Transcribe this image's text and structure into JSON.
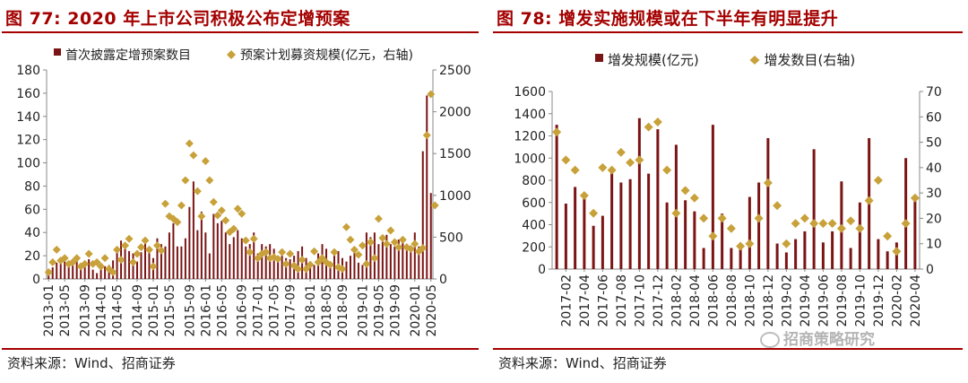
{
  "left": {
    "title": "图 77:  2020 年上市公司积极公布定增预案",
    "source": "资料来源：Wind、招商证券"
  },
  "right": {
    "title": "图 78:  增发实施规模或在下半年有明显提升",
    "source": "资料来源：Wind、招商证券"
  },
  "watermark": "招商策略研究",
  "colors": {
    "bar": "#7b1414",
    "diamond": "#c8a13a",
    "accent": "#a40000",
    "axis": "#888888",
    "text": "#222222"
  },
  "chart_data": [
    {
      "type": "bar",
      "title": "2020 年上市公司积极公布定增预案",
      "legend": [
        "首次披露定增预案数目",
        "预案计划募资规模(亿元，右轴)"
      ],
      "legend_position": "top",
      "ylim": [
        0,
        180
      ],
      "y_ticks": [
        0,
        20,
        40,
        60,
        80,
        100,
        120,
        140,
        160,
        180
      ],
      "y2lim": [
        0,
        2500
      ],
      "y2_ticks": [
        0,
        500,
        1000,
        1500,
        2000,
        2500
      ],
      "x_tick_labels": [
        "2013-01",
        "2013-05",
        "2013-09",
        "2014-01",
        "2014-05",
        "2014-09",
        "2015-01",
        "2015-05",
        "2015-09",
        "2016-01",
        "2016-05",
        "2016-09",
        "2017-01",
        "2017-05",
        "2017-09",
        "2018-01",
        "2018-05",
        "2018-09",
        "2019-01",
        "2019-05",
        "2019-09",
        "2020-01",
        "2020-05"
      ],
      "series": [
        {
          "name": "首次披露定增预案数目",
          "kind": "bar",
          "axis": "left",
          "values": [
            5,
            10,
            14,
            16,
            15,
            12,
            14,
            18,
            12,
            14,
            17,
            8,
            5,
            9,
            11,
            12,
            16,
            24,
            33,
            28,
            24,
            22,
            15,
            23,
            31,
            24,
            18,
            35,
            30,
            28,
            40,
            48,
            28,
            28,
            35,
            62,
            84,
            42,
            58,
            40,
            22,
            56,
            48,
            50,
            40,
            30,
            36,
            42,
            35,
            28,
            30,
            40,
            22,
            30,
            28,
            30,
            26,
            18,
            20,
            18,
            17,
            20,
            24,
            28,
            18,
            15,
            12,
            22,
            30,
            26,
            15,
            20,
            24,
            18,
            15,
            20,
            26,
            14,
            12,
            40,
            36,
            40,
            30,
            32,
            38,
            30,
            28,
            34,
            35,
            28,
            26,
            40,
            28,
            110,
            158,
            74
          ]
        },
        {
          "name": "预案计划募资规模(亿元，右轴)",
          "kind": "scatter",
          "axis": "right",
          "values": [
            80,
            200,
            350,
            220,
            250,
            180,
            200,
            250,
            150,
            180,
            300,
            180,
            200,
            150,
            250,
            120,
            80,
            350,
            230,
            400,
            480,
            200,
            300,
            380,
            460,
            350,
            150,
            400,
            340,
            900,
            750,
            720,
            680,
            880,
            1180,
            1620,
            1480,
            1050,
            750,
            1410,
            1180,
            920,
            760,
            820,
            700,
            560,
            600,
            840,
            780,
            460,
            320,
            480,
            250,
            300,
            320,
            250,
            260,
            240,
            320,
            180,
            300,
            160,
            120,
            230,
            120,
            170,
            330,
            200,
            250,
            200,
            170,
            320,
            140,
            120,
            620,
            470,
            350,
            290,
            400,
            180,
            440,
            250,
            720,
            490,
            420,
            580,
            440,
            380,
            470,
            380,
            360,
            420,
            330,
            370,
            1720,
            2210,
            880
          ]
        }
      ]
    },
    {
      "type": "bar",
      "title": "增发实施规模或在下半年有明显提升",
      "legend": [
        "增发规模(亿元)",
        "增发数目(右轴)"
      ],
      "legend_position": "top",
      "ylim": [
        0,
        1600
      ],
      "y_ticks": [
        0,
        200,
        400,
        600,
        800,
        1000,
        1200,
        1400,
        1600
      ],
      "y2lim": [
        0,
        70
      ],
      "y2_ticks": [
        0,
        10,
        20,
        30,
        40,
        50,
        60,
        70
      ],
      "categories": [
        "2017-01",
        "2017-02",
        "2017-03",
        "2017-04",
        "2017-05",
        "2017-06",
        "2017-07",
        "2017-08",
        "2017-09",
        "2017-10",
        "2017-11",
        "2017-12",
        "2018-01",
        "2018-02",
        "2018-03",
        "2018-04",
        "2018-05",
        "2018-06",
        "2018-07",
        "2018-08",
        "2018-09",
        "2018-10",
        "2018-11",
        "2018-12",
        "2019-01",
        "2019-02",
        "2019-03",
        "2019-04",
        "2019-05",
        "2019-06",
        "2019-07",
        "2019-08",
        "2019-09",
        "2019-10",
        "2019-11",
        "2019-12",
        "2020-01",
        "2020-02",
        "2020-03",
        "2020-04"
      ],
      "x_tick_labels": [
        "2017-02",
        "2017-04",
        "2017-06",
        "2017-08",
        "2017-10",
        "2017-12",
        "2018-02",
        "2018-04",
        "2018-06",
        "2018-08",
        "2018-10",
        "2018-12",
        "2019-02",
        "2019-04",
        "2019-06",
        "2019-08",
        "2019-10",
        "2019-12",
        "2020-02",
        "2020-04"
      ],
      "series": [
        {
          "name": "增发规模(亿元)",
          "kind": "bar",
          "axis": "left",
          "values": [
            1300,
            590,
            740,
            660,
            390,
            480,
            900,
            780,
            810,
            1360,
            860,
            1260,
            600,
            1120,
            620,
            520,
            190,
            1300,
            500,
            190,
            220,
            650,
            780,
            1180,
            230,
            150,
            270,
            340,
            1080,
            240,
            340,
            790,
            190,
            600,
            1180,
            270,
            160,
            240,
            1000,
            650
          ]
        },
        {
          "name": "增发数目(右轴)",
          "kind": "scatter",
          "axis": "right",
          "values": [
            54,
            43,
            39,
            29,
            22,
            40,
            39,
            46,
            42,
            43,
            56,
            58,
            39,
            22,
            31,
            28,
            20,
            13,
            20,
            16,
            9,
            10,
            20,
            34,
            25,
            10,
            18,
            20,
            18,
            18,
            18,
            16,
            19,
            16,
            27,
            35,
            13,
            7,
            18,
            28
          ]
        }
      ]
    }
  ]
}
